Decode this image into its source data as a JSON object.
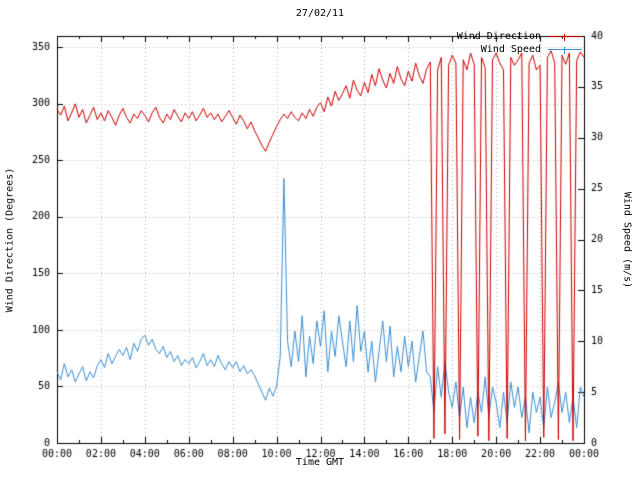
{
  "title": "27/02/11",
  "legend": {
    "items": [
      {
        "label": "Wind Direction",
        "series": "direction"
      },
      {
        "label": "Wind Speed",
        "series": "speed"
      }
    ]
  },
  "axes": {
    "left_label": "Wind Direction (Degrees)",
    "right_label": "Wind Speed (m/s)",
    "x_label": "Time GMT",
    "left_ticks": [
      0,
      50,
      100,
      150,
      200,
      250,
      300,
      350
    ],
    "right_ticks": [
      0,
      5,
      10,
      15,
      20,
      25,
      30,
      35,
      40
    ],
    "x_tick_minutes": [
      0,
      120,
      240,
      360,
      480,
      600,
      720,
      840,
      960,
      1080,
      1200,
      1320,
      1440
    ],
    "x_tick_labels": [
      "00:00",
      "02:00",
      "04:00",
      "06:00",
      "08:00",
      "10:00",
      "12:00",
      "14:00",
      "16:00",
      "18:00",
      "20:00",
      "22:00",
      "00:00"
    ],
    "left_range": [
      0,
      360
    ],
    "right_range": [
      0,
      40
    ],
    "x_range_minutes": [
      0,
      1440
    ]
  },
  "colors": {
    "direction": "#cc0000",
    "speed": "#3d8fd1",
    "grid": "#b4b4b4",
    "axis": "#000000",
    "background": "#ffffff",
    "text": "#000000"
  },
  "chart_data": {
    "type": "line",
    "title": "27/02/11",
    "xlabel": "Time GMT",
    "ylabel_left": "Wind Direction (Degrees)",
    "ylabel_right": "Wind Speed (m/s)",
    "x_start_minutes": 0,
    "x_step_minutes": 10,
    "grid": true,
    "legend_position": "top-right",
    "series": [
      {
        "name": "Wind Direction",
        "axis": "left",
        "unit": "degrees",
        "range": [
          0,
          360
        ],
        "values": [
          295,
          290,
          298,
          285,
          292,
          300,
          288,
          295,
          283,
          290,
          297,
          286,
          292,
          285,
          294,
          288,
          281,
          290,
          296,
          288,
          283,
          291,
          287,
          294,
          290,
          284,
          292,
          297,
          288,
          283,
          291,
          286,
          295,
          289,
          284,
          292,
          287,
          293,
          285,
          290,
          296,
          288,
          292,
          286,
          291,
          284,
          289,
          294,
          288,
          282,
          290,
          285,
          278,
          284,
          276,
          270,
          263,
          258,
          266,
          273,
          280,
          286,
          291,
          287,
          293,
          288,
          285,
          292,
          287,
          295,
          289,
          297,
          301,
          293,
          306,
          298,
          311,
          303,
          309,
          316,
          305,
          321,
          312,
          307,
          319,
          310,
          326,
          316,
          331,
          321,
          314,
          327,
          318,
          333,
          322,
          316,
          329,
          320,
          336,
          325,
          318,
          331,
          337,
          4,
          330,
          341,
          8,
          334,
          343,
          336,
          3,
          339,
          330,
          345,
          335,
          6,
          341,
          332,
          2,
          339,
          345,
          336,
          330,
          4,
          341,
          334,
          339,
          345,
          2,
          336,
          343,
          330,
          334,
          5,
          341,
          347,
          336,
          3,
          343,
          335,
          345,
          2,
          338,
          346,
          341
        ]
      },
      {
        "name": "Wind Speed",
        "axis": "right",
        "unit": "m/s",
        "range": [
          0,
          40
        ],
        "values": [
          7.0,
          6.2,
          7.8,
          6.5,
          7.2,
          6.0,
          6.8,
          7.5,
          6.1,
          7.0,
          6.4,
          7.6,
          8.2,
          7.4,
          8.8,
          7.8,
          8.5,
          9.2,
          8.6,
          9.4,
          8.2,
          9.8,
          9.0,
          10.2,
          10.6,
          9.6,
          10.2,
          9.2,
          8.8,
          9.5,
          8.4,
          9.0,
          8.0,
          8.6,
          7.6,
          8.2,
          7.8,
          8.4,
          7.4,
          8.0,
          8.8,
          7.6,
          8.2,
          7.5,
          8.6,
          7.8,
          7.2,
          8.0,
          7.4,
          8.0,
          7.0,
          7.6,
          6.8,
          7.2,
          6.6,
          5.8,
          5.0,
          4.2,
          5.4,
          4.6,
          5.6,
          8.5,
          26.0,
          10.0,
          7.5,
          11.0,
          8.0,
          12.5,
          6.5,
          10.5,
          7.8,
          12.0,
          9.5,
          13.0,
          7.0,
          11.0,
          8.5,
          12.5,
          10.0,
          7.5,
          12.0,
          8.0,
          13.5,
          9.0,
          11.0,
          7.0,
          10.0,
          6.0,
          9.0,
          12.0,
          8.0,
          11.5,
          6.5,
          9.5,
          7.0,
          10.5,
          7.5,
          10.0,
          6.0,
          8.5,
          11.0,
          7.0,
          6.5,
          3.0,
          7.5,
          4.5,
          8.0,
          5.0,
          3.5,
          6.0,
          2.5,
          5.5,
          1.5,
          4.5,
          2.0,
          5.0,
          3.0,
          6.5,
          2.5,
          5.5,
          4.0,
          1.5,
          5.0,
          2.0,
          6.0,
          3.5,
          5.5,
          2.5,
          4.5,
          1.0,
          5.0,
          3.0,
          4.5,
          1.5,
          5.5,
          2.5,
          4.0,
          6.0,
          3.0,
          5.0,
          2.0,
          4.5,
          1.5,
          5.5,
          4.5
        ]
      }
    ]
  }
}
